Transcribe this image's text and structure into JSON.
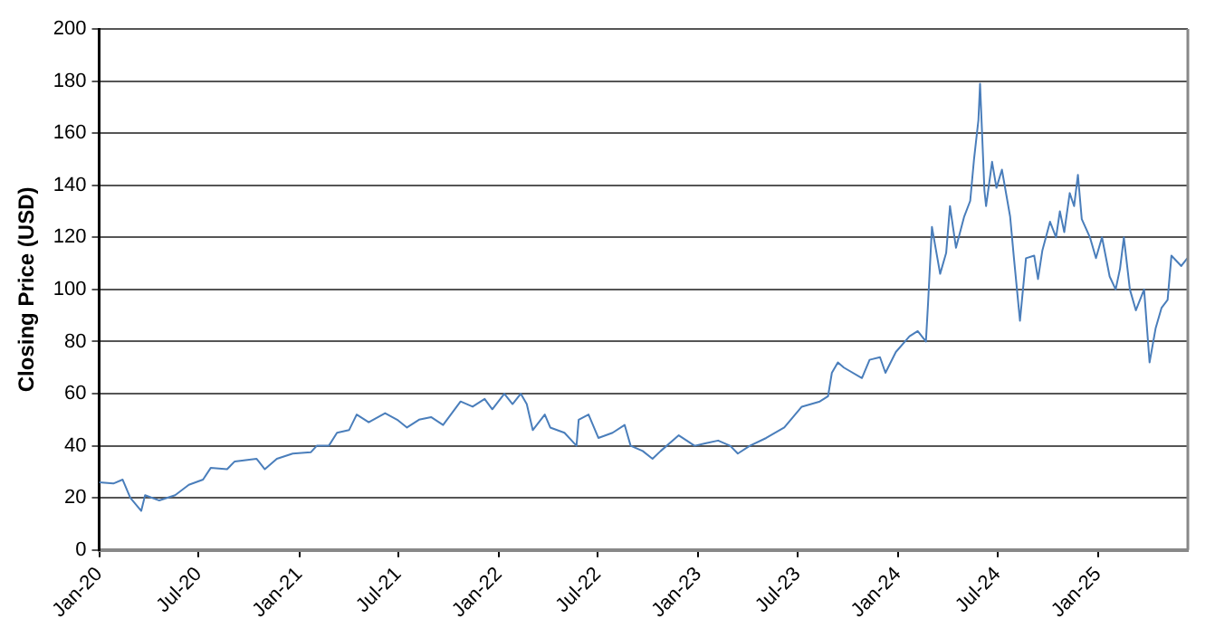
{
  "chart_data": {
    "type": "line",
    "ylabel": "Closing Price (USD)",
    "x": [
      "2020-01-01",
      "2020-01-27",
      "2020-02-13",
      "2020-02-27",
      "2020-03-18",
      "2020-03-25",
      "2020-04-20",
      "2020-05-19",
      "2020-06-13",
      "2020-07-09",
      "2020-07-23",
      "2020-08-22",
      "2020-09-05",
      "2020-10-15",
      "2020-10-30",
      "2020-11-21",
      "2020-12-20",
      "2021-01-22",
      "2021-02-02",
      "2021-02-24",
      "2021-03-11",
      "2021-04-02",
      "2021-04-16",
      "2021-05-08",
      "2021-06-07",
      "2021-06-29",
      "2021-07-17",
      "2021-08-08",
      "2021-08-30",
      "2021-09-21",
      "2021-10-23",
      "2021-11-14",
      "2021-12-06",
      "2021-12-20",
      "2022-01-11",
      "2022-01-26",
      "2022-02-10",
      "2022-02-21",
      "2022-03-04",
      "2022-03-26",
      "2022-04-05",
      "2022-05-01",
      "2022-05-23",
      "2022-05-27",
      "2022-06-14",
      "2022-07-02",
      "2022-07-28",
      "2022-08-19",
      "2022-08-30",
      "2022-09-21",
      "2022-10-09",
      "2022-10-24",
      "2022-11-26",
      "2022-12-25",
      "2023-01-15",
      "2023-02-06",
      "2023-02-28",
      "2023-03-14",
      "2023-04-05",
      "2023-05-05",
      "2023-06-07",
      "2023-07-09",
      "2023-08-11",
      "2023-08-26",
      "2023-09-02",
      "2023-09-13",
      "2023-09-24",
      "2023-10-27",
      "2023-11-10",
      "2023-11-29",
      "2023-12-09",
      "2023-12-28",
      "2024-01-22",
      "2024-02-06",
      "2024-02-21",
      "2024-02-25",
      "2024-03-03",
      "2024-03-18",
      "2024-03-29",
      "2024-04-05",
      "2024-04-16",
      "2024-05-01",
      "2024-05-12",
      "2024-05-19",
      "2024-05-27",
      "2024-05-30",
      "2024-06-07",
      "2024-06-10",
      "2024-06-21",
      "2024-06-29",
      "2024-07-09",
      "2024-07-24",
      "2024-07-31",
      "2024-08-11",
      "2024-08-22",
      "2024-09-06",
      "2024-09-13",
      "2024-09-21",
      "2024-10-05",
      "2024-10-16",
      "2024-10-23",
      "2024-10-31",
      "2024-11-10",
      "2024-11-18",
      "2024-11-25",
      "2024-12-02",
      "2024-12-17",
      "2024-12-28",
      "2025-01-08",
      "2025-01-22",
      "2025-02-02",
      "2025-02-10",
      "2025-02-17",
      "2025-02-28",
      "2025-03-11",
      "2025-03-26",
      "2025-04-05",
      "2025-04-16",
      "2025-04-27",
      "2025-05-08",
      "2025-05-15",
      "2025-06-02",
      "2025-06-13"
    ],
    "series": [
      {
        "color": "#4a7ebb",
        "values": [
          26,
          25.5,
          27,
          20,
          15,
          21,
          19,
          21,
          25,
          27,
          31.5,
          31,
          34,
          35,
          31,
          35,
          37,
          37.5,
          40,
          40,
          45,
          46,
          52,
          49,
          52.5,
          50,
          47,
          50,
          51,
          48,
          57,
          55,
          58,
          54,
          60,
          56,
          60,
          56,
          46,
          52,
          47,
          45,
          40,
          50,
          52,
          43,
          45,
          48,
          40,
          38,
          35,
          38,
          44,
          40,
          41,
          42,
          40,
          37,
          40,
          43,
          47,
          55,
          57,
          59,
          68,
          72,
          70,
          66,
          73,
          74,
          68,
          76,
          82,
          84,
          80,
          95,
          124,
          106,
          114,
          132,
          116,
          128,
          134,
          150,
          165,
          179,
          138,
          132,
          149,
          139,
          146,
          128,
          112,
          88,
          112,
          113,
          104,
          115,
          126,
          120,
          130,
          122,
          137,
          132,
          144,
          127,
          120,
          112,
          120,
          105,
          100,
          108,
          120,
          100,
          92,
          100,
          72,
          85,
          93,
          96,
          113,
          109,
          112
        ]
      }
    ],
    "xlim": [
      "2020-01-01",
      "2025-06-14"
    ],
    "xticks": [
      {
        "value": "2020-01-01",
        "label": "Jan-20"
      },
      {
        "value": "2020-07-01",
        "label": "Jul-20"
      },
      {
        "value": "2021-01-01",
        "label": "Jan-21"
      },
      {
        "value": "2021-07-01",
        "label": "Jul-21"
      },
      {
        "value": "2022-01-01",
        "label": "Jan-22"
      },
      {
        "value": "2022-07-01",
        "label": "Jul-22"
      },
      {
        "value": "2023-01-01",
        "label": "Jan-23"
      },
      {
        "value": "2023-07-01",
        "label": "Jul-23"
      },
      {
        "value": "2024-01-01",
        "label": "Jan-24"
      },
      {
        "value": "2024-07-01",
        "label": "Jul-24"
      },
      {
        "value": "2025-01-01",
        "label": "Jan-25"
      }
    ],
    "ylim": [
      0,
      200
    ],
    "yticks": [
      0,
      20,
      40,
      60,
      80,
      100,
      120,
      140,
      160,
      180,
      200
    ],
    "grid": "y",
    "marker": "none",
    "line_style": "solid",
    "legend": false
  }
}
